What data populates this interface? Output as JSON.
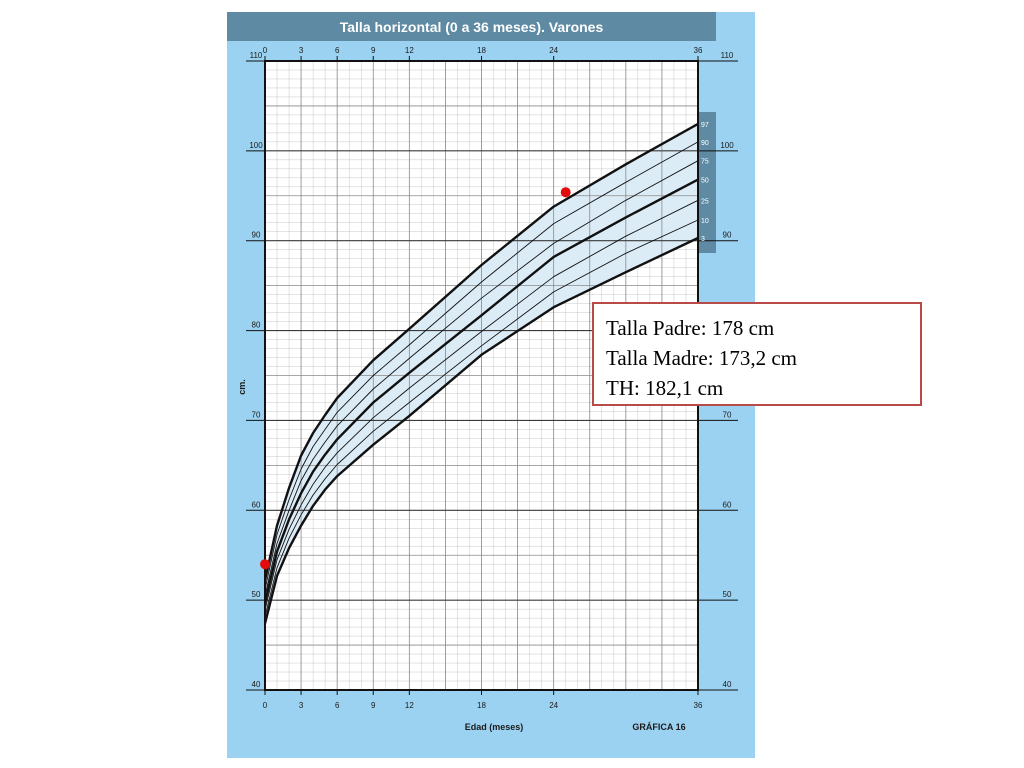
{
  "chart_data": {
    "type": "line",
    "title": "Talla horizontal (0 a 36 meses). Varones",
    "xlabel": "Edad (meses)",
    "ylabel": "cm.",
    "figure_label": "GRÁFICA 16",
    "xlim": [
      0,
      36
    ],
    "ylim": [
      40,
      110
    ],
    "x_ticks": [
      0,
      3,
      6,
      9,
      12,
      18,
      24,
      36
    ],
    "y_ticks": [
      40,
      50,
      60,
      70,
      80,
      90,
      100,
      110
    ],
    "grid": true,
    "x": [
      0,
      1,
      2,
      3,
      4,
      5,
      6,
      9,
      12,
      18,
      24,
      30,
      36
    ],
    "series": [
      {
        "name": "97",
        "values": [
          52.2,
          58.3,
          62.5,
          66.1,
          68.6,
          70.6,
          72.5,
          76.7,
          80.2,
          87.3,
          93.8,
          98.5,
          103.0
        ]
      },
      {
        "name": "90",
        "values": [
          51.2,
          57.3,
          61.2,
          64.6,
          67.1,
          69.0,
          70.9,
          75.0,
          78.4,
          85.4,
          91.9,
          96.5,
          101.0
        ]
      },
      {
        "name": "75",
        "values": [
          50.5,
          56.3,
          60.0,
          63.3,
          65.7,
          67.6,
          69.4,
          73.5,
          76.9,
          83.6,
          89.7,
          94.5,
          98.9
        ]
      },
      {
        "name": "50",
        "values": [
          49.7,
          55.4,
          59.0,
          61.9,
          64.3,
          66.2,
          67.9,
          72.0,
          75.3,
          81.7,
          88.2,
          92.6,
          96.8
        ]
      },
      {
        "name": "25",
        "values": [
          48.9,
          54.5,
          57.9,
          60.6,
          62.9,
          64.8,
          66.4,
          70.3,
          73.6,
          79.9,
          86.0,
          90.5,
          94.5
        ]
      },
      {
        "name": "10",
        "values": [
          48.2,
          53.6,
          56.9,
          59.5,
          61.7,
          63.5,
          65.1,
          68.8,
          72.0,
          78.3,
          84.3,
          88.6,
          92.3
        ]
      },
      {
        "name": "3",
        "values": [
          47.4,
          52.7,
          55.8,
          58.3,
          60.5,
          62.3,
          63.8,
          67.3,
          70.5,
          77.3,
          82.6,
          86.5,
          90.3
        ]
      }
    ],
    "points": [
      {
        "x": 0,
        "y": 54.0,
        "color": "#e30b0b"
      },
      {
        "x": 25,
        "y": 95.4,
        "color": "#e30b0b"
      }
    ]
  },
  "info": {
    "line1": "Talla Padre: 178 cm",
    "line2": "Talla Madre: 173,2 cm",
    "line3": "TH: 182,1 cm"
  },
  "colors": {
    "card_bg": "#9cd2f1",
    "title_bg": "#5e8aa3",
    "band_fill": "#dcecf7",
    "point": "#e30b0b",
    "info_border": "#b84a48"
  }
}
